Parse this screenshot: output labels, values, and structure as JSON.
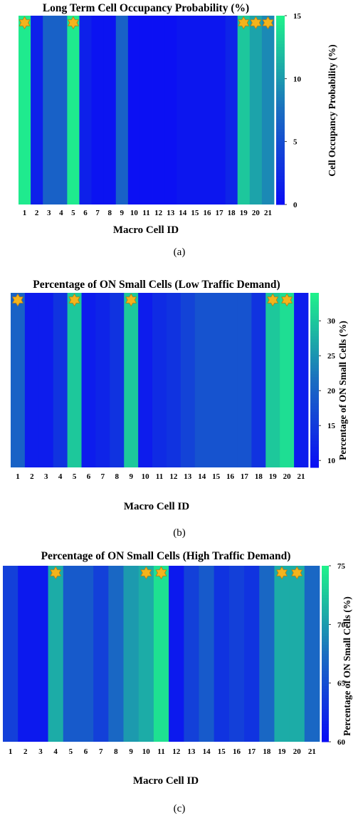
{
  "chart_data": [
    {
      "type": "heatmap",
      "title": "Long Term Cell Occupancy Probability (%)",
      "xlabel": "Macro Cell ID",
      "colorbar_label": "Cell Occupancy Probability (%)",
      "colorbar_ticks": [
        "0",
        "5",
        "10",
        "15"
      ],
      "clim": [
        0,
        15
      ],
      "categories": [
        "1",
        "2",
        "3",
        "4",
        "5",
        "6",
        "7",
        "8",
        "9",
        "10",
        "11",
        "12",
        "13",
        "14",
        "15",
        "16",
        "17",
        "18",
        "19",
        "20",
        "21"
      ],
      "values": [
        14.5,
        1.5,
        6.5,
        6.5,
        14.5,
        1.5,
        0.5,
        0.5,
        6.5,
        0.3,
        0.3,
        0.3,
        0.3,
        0.8,
        0.8,
        0.8,
        0.8,
        1.8,
        12.5,
        10.5,
        9.0
      ],
      "starred": [
        "1",
        "5",
        "19",
        "20",
        "21"
      ],
      "caption": "(a)"
    },
    {
      "type": "heatmap",
      "title": "Percentage of ON Small Cells (Low Traffic Demand)",
      "xlabel": "Macro Cell ID",
      "colorbar_label": "Percentage of ON Small Cells (%)",
      "colorbar_ticks": [
        "10",
        "15",
        "20",
        "25",
        "30"
      ],
      "clim": [
        9,
        34
      ],
      "categories": [
        "1",
        "2",
        "3",
        "4",
        "5",
        "6",
        "7",
        "8",
        "9",
        "10",
        "11",
        "12",
        "13",
        "14",
        "15",
        "16",
        "17",
        "18",
        "19",
        "20",
        "21"
      ],
      "values": [
        20,
        11,
        11,
        14,
        30,
        11,
        12,
        14,
        30,
        11,
        13,
        14,
        16,
        18,
        18,
        18,
        18,
        14,
        30,
        32,
        11
      ],
      "starred": [
        "1",
        "5",
        "9",
        "19",
        "20"
      ],
      "caption": "(b)"
    },
    {
      "type": "heatmap",
      "title": "Percentage of ON Small Cells (High Traffic Demand)",
      "xlabel": "Macro Cell ID",
      "colorbar_label": "Percentage of ON Small Cells (%)",
      "colorbar_ticks": [
        "60",
        "65",
        "70",
        "75"
      ],
      "clim": [
        60,
        75
      ],
      "categories": [
        "1",
        "2",
        "3",
        "4",
        "5",
        "6",
        "7",
        "8",
        "9",
        "10",
        "11",
        "12",
        "13",
        "14",
        "15",
        "16",
        "17",
        "18",
        "19",
        "20",
        "21"
      ],
      "values": [
        64,
        61,
        61,
        71,
        66,
        66,
        64,
        67,
        70,
        71,
        74,
        61,
        64,
        66,
        63,
        64,
        63,
        67,
        71,
        71,
        67
      ],
      "starred": [
        "4",
        "10",
        "11",
        "19",
        "20"
      ],
      "caption": "(c)"
    }
  ],
  "colors": {
    "colormap_low": "#0a0cf5",
    "colormap_mid": "#1a6ec0",
    "colormap_high": "#1ff38a",
    "star_fill": "#f4b41c",
    "star_stroke": "#b87c10"
  }
}
